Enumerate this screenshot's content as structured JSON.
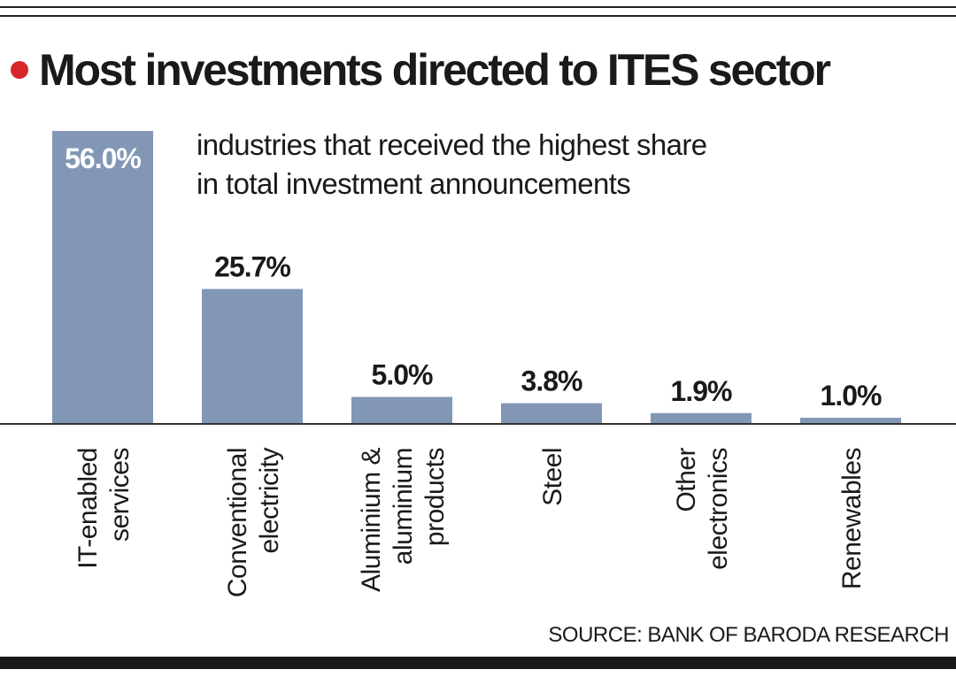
{
  "title": "Most investments directed to ITES sector",
  "subtitle_lines": [
    "industries that received the highest share",
    "in total investment announcements"
  ],
  "source": "SOURCE: BANK OF BARODA RESEARCH",
  "colors": {
    "bar": "#8197b5",
    "accent_dot": "#d7262a",
    "text": "#1a1a1a",
    "label_inside": "#ffffff"
  },
  "chart_data": {
    "type": "bar",
    "categories": [
      [
        "IT-enabled",
        "services"
      ],
      [
        "Conventional",
        "electricity"
      ],
      [
        "Aluminium &",
        "aluminium",
        "products"
      ],
      [
        "Steel"
      ],
      [
        "Other",
        "electronics"
      ],
      [
        "Renewables"
      ]
    ],
    "values": [
      56.0,
      25.7,
      5.0,
      3.8,
      1.9,
      1.0
    ],
    "data_labels": [
      "56.0%",
      "25.7%",
      "5.0%",
      "3.8%",
      "1.9%",
      "1.0%"
    ],
    "unit": "%",
    "ylim": [
      0,
      56
    ],
    "grid": false,
    "legend": "none"
  }
}
